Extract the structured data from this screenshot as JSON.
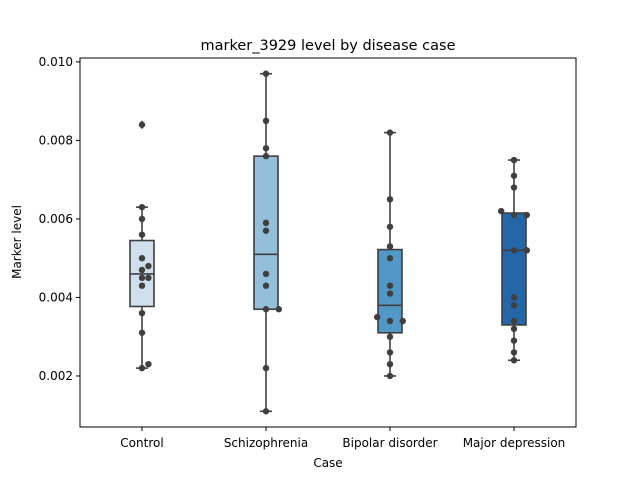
{
  "chart_data": {
    "type": "box",
    "title": "marker_3929 level by disease case",
    "xlabel": "Case",
    "ylabel": "Marker level",
    "ylim": [
      0.0007,
      0.0101
    ],
    "yticks": [
      "0.002",
      "0.004",
      "0.006",
      "0.008",
      "0.010"
    ],
    "ytick_values": [
      0.002,
      0.004,
      0.006,
      0.008,
      0.01
    ],
    "grid": false,
    "categories": [
      "Control",
      "Schizophrenia",
      "Bipolar disorder",
      "Major depression"
    ],
    "colors": [
      "#d0dfee",
      "#93bfda",
      "#5298c7",
      "#2466a8"
    ],
    "boxes": [
      {
        "q1": 0.00377,
        "median": 0.0046,
        "q3": 0.00545,
        "whisker_low": 0.0022,
        "whisker_high": 0.0063,
        "outliers": [
          0.0084
        ]
      },
      {
        "q1": 0.0037,
        "median": 0.0051,
        "q3": 0.0076,
        "whisker_low": 0.0011,
        "whisker_high": 0.0097,
        "outliers": []
      },
      {
        "q1": 0.0031,
        "median": 0.0038,
        "q3": 0.00522,
        "whisker_low": 0.002,
        "whisker_high": 0.0082,
        "outliers": []
      },
      {
        "q1": 0.0033,
        "median": 0.0052,
        "q3": 0.00615,
        "whisker_low": 0.0024,
        "whisker_high": 0.0075,
        "outliers": []
      }
    ],
    "points": [
      [
        0.0084,
        0.0063,
        0.006,
        0.0056,
        0.005,
        0.0048,
        0.0047,
        0.0045,
        0.0045,
        0.0043,
        0.0036,
        0.0031,
        0.0023,
        0.0022
      ],
      [
        0.0097,
        0.0085,
        0.0078,
        0.0076,
        0.0059,
        0.0057,
        0.0046,
        0.0043,
        0.0037,
        0.0037,
        0.0022,
        0.0011
      ],
      [
        0.0082,
        0.0065,
        0.0058,
        0.0053,
        0.005,
        0.0043,
        0.0041,
        0.0035,
        0.0034,
        0.0034,
        0.003,
        0.0026,
        0.0023,
        0.002
      ],
      [
        0.0075,
        0.0071,
        0.0068,
        0.0062,
        0.0061,
        0.0061,
        0.0052,
        0.0052,
        0.004,
        0.0038,
        0.0034,
        0.0032,
        0.0029,
        0.0026,
        0.0024
      ]
    ]
  }
}
